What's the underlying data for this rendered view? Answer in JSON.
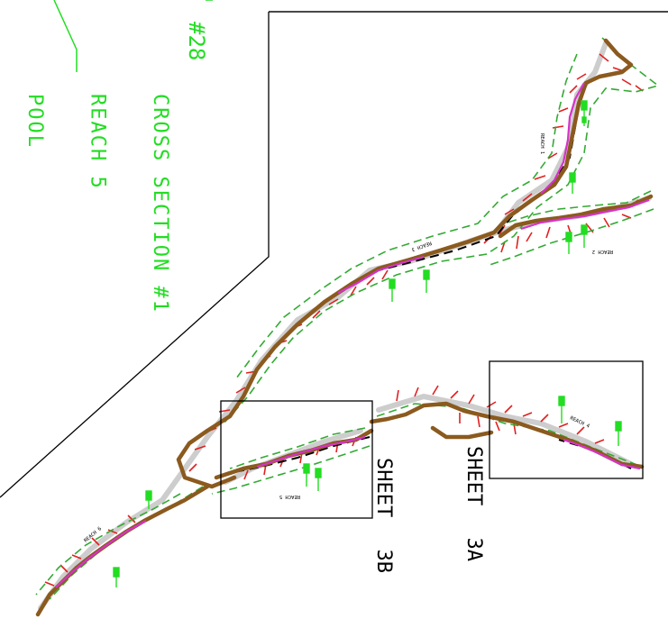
{
  "annotations": {
    "cross_section_label": [
      "CROSS SECTION #1",
      "REACH 5",
      "POOL"
    ],
    "section_number": "#28"
  },
  "sheets": [
    {
      "id": "3b",
      "label": "SHEET 3B"
    },
    {
      "id": "3a",
      "label": "SHEET 3A"
    }
  ],
  "reach_labels": [
    "REACH 1",
    "REACH 2",
    "REACH 3",
    "REACH 4",
    "REACH 5",
    "REACH 6"
  ],
  "colors": {
    "stream_main": "#8b5a1e",
    "centerline": "#d633c8",
    "boundary": "#33aa33",
    "contours": "#e02020",
    "hatch": "#c8c8c8",
    "annotation": "#22dd22",
    "frame": "#000000"
  }
}
